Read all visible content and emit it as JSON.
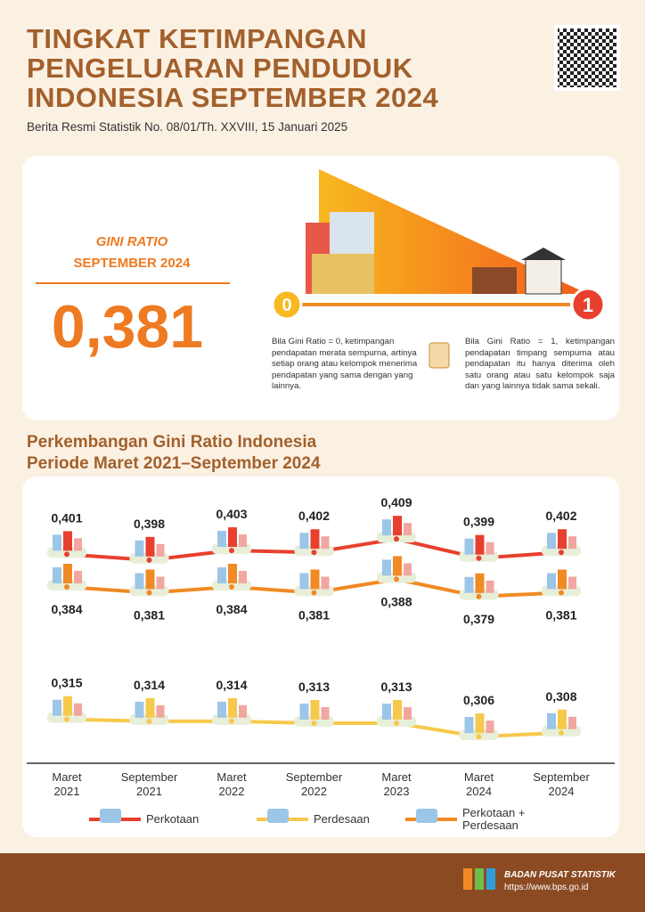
{
  "header": {
    "title": [
      "TINGKAT KETIMPANGAN",
      "PENGELUARAN PENDUDUK",
      "INDONESIA SEPTEMBER 2024"
    ],
    "subtitle": "Berita Resmi Statistik No. 08/01/Th. XXVIII, 15 Januari 2025"
  },
  "gini_box": {
    "label": "GINI RATIO",
    "period": "SEPTEMBER 2024",
    "value": "0,381",
    "scale_min": "0",
    "scale_max": "1",
    "note_zero": "Bila Gini Ratio = 0, ketimpangan pendapatan merata sempurna, artinya setiap orang atau kelompok menerima pendapatan yang sama dengan yang lainnya.",
    "note_one": "Bila Gini Ratio = 1, ketimpangan pendapatan timpang sempurna atau pendapatan itu hanya diterima oleh satu orang atau satu kelompok saja dan yang lainnya tidak sama sekali."
  },
  "chart_data": {
    "type": "line",
    "title": "Perkembangan Gini Ratio Indonesia",
    "subtitle": "Periode Maret 2021–September 2024",
    "categories": [
      "Maret 2021",
      "September 2021",
      "Maret 2022",
      "September 2022",
      "Maret 2023",
      "Maret 2024",
      "September 2024"
    ],
    "ylim": [
      0.3,
      0.41
    ],
    "series": [
      {
        "name": "Perkotaan",
        "color": "#e8402e",
        "label_position": "above",
        "values": [
          0.401,
          0.398,
          0.403,
          0.402,
          0.409,
          0.399,
          0.402
        ],
        "value_labels": [
          "0,401",
          "0,398",
          "0,403",
          "0,402",
          "0,409",
          "0,399",
          "0,402"
        ]
      },
      {
        "name": "Perdesaan",
        "color": "#f6c94c",
        "label_position": "above",
        "values": [
          0.315,
          0.314,
          0.314,
          0.313,
          0.313,
          0.306,
          0.308
        ],
        "value_labels": [
          "0,315",
          "0,314",
          "0,314",
          "0,313",
          "0,313",
          "0,306",
          "0,308"
        ]
      },
      {
        "name": "Perkotaan + Perdesaan",
        "color": "#f08a24",
        "label_position": "below",
        "values": [
          0.384,
          0.381,
          0.384,
          0.381,
          0.388,
          0.379,
          0.381
        ],
        "value_labels": [
          "0,384",
          "0,381",
          "0,384",
          "0,381",
          "0,388",
          "0,379",
          "0,381"
        ]
      }
    ]
  },
  "footer": {
    "org": "BADAN PUSAT STATISTIK",
    "url": "https://www.bps.go.id"
  }
}
